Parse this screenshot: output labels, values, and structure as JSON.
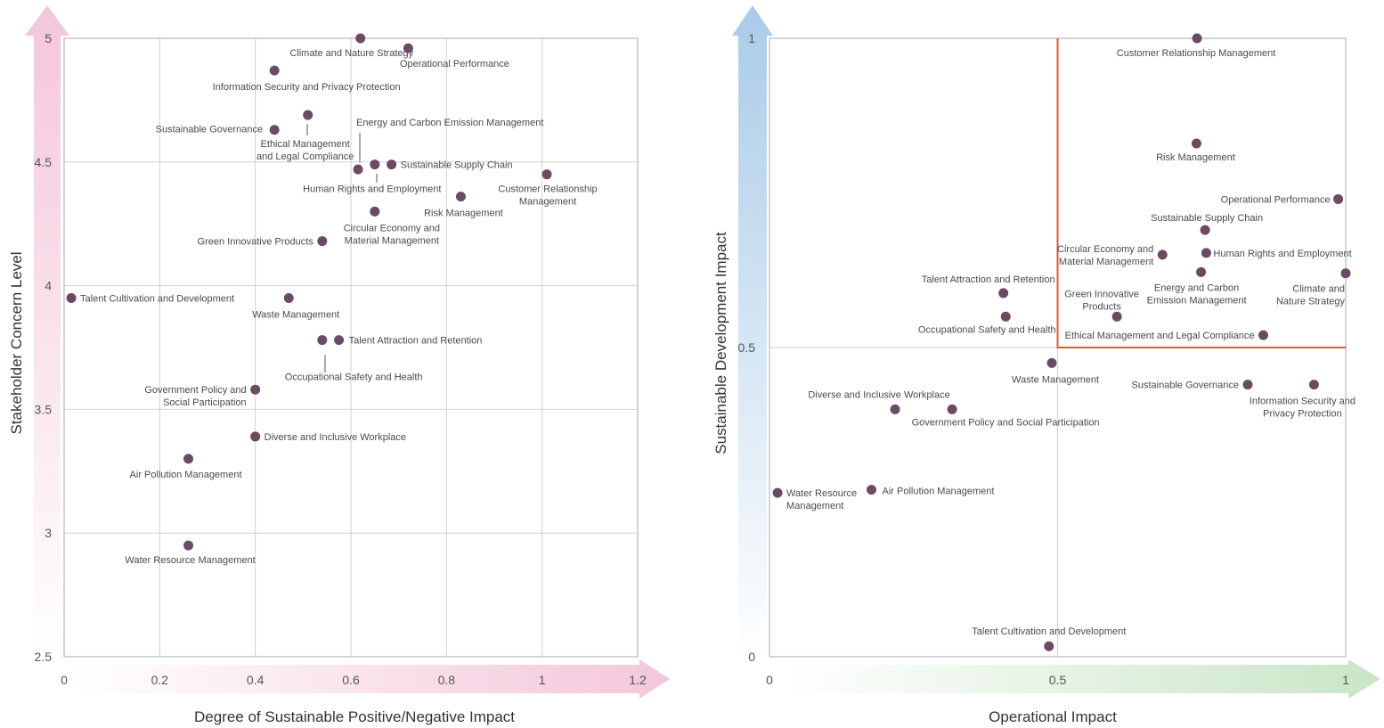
{
  "colors": {
    "point": "#6b4a63",
    "grid": "#d0d0d0",
    "frame": "#b8b8b8",
    "quadrant": "#e2553a",
    "leader": "#555555",
    "pink_arrow": "#f4c6da",
    "blue_arrow": "#a9cbe8",
    "green_arrow": "#c9e5c6"
  },
  "chart_data": [
    {
      "type": "scatter",
      "title": "",
      "xlabel": "Degree of Sustainable Positive/Negative Impact",
      "ylabel": "Stakeholder Concern Level",
      "xlim": [
        0,
        1.2
      ],
      "ylim": [
        2.5,
        5
      ],
      "xticks": [
        "0",
        "0.2",
        "0.4",
        "0.6",
        "0.8",
        "1",
        "1.2"
      ],
      "yticks": [
        "2.5",
        "3",
        "3.5",
        "4",
        "4.5",
        "5"
      ],
      "grid": true,
      "points": [
        {
          "label": "Climate and Nature Strategy",
          "x": 0.62,
          "y": 5.0
        },
        {
          "label": "Operational Performance",
          "x": 0.72,
          "y": 4.96
        },
        {
          "label": "Information Security and Privacy Protection",
          "x": 0.44,
          "y": 4.87
        },
        {
          "label": "Ethical Management\nand Legal Compliance",
          "x": 0.51,
          "y": 4.69
        },
        {
          "label": "Sustainable Governance",
          "x": 0.44,
          "y": 4.63
        },
        {
          "label": "Energy and Carbon Emission Management",
          "x": 0.615,
          "y": 4.47
        },
        {
          "label": "Human Rights and Employment",
          "x": 0.65,
          "y": 4.49
        },
        {
          "label": "Sustainable Supply Chain",
          "x": 0.685,
          "y": 4.49
        },
        {
          "label": "Customer Relationship\nManagement",
          "x": 1.01,
          "y": 4.45
        },
        {
          "label": "Risk Management",
          "x": 0.83,
          "y": 4.36
        },
        {
          "label": "Circular Economy and\nMaterial Management",
          "x": 0.65,
          "y": 4.3
        },
        {
          "label": "Green Innovative Products",
          "x": 0.54,
          "y": 4.18
        },
        {
          "label": "Talent Cultivation and Development",
          "x": 0.015,
          "y": 3.95
        },
        {
          "label": "Waste Management",
          "x": 0.47,
          "y": 3.95
        },
        {
          "label": "Occupational Safety and Health",
          "x": 0.54,
          "y": 3.78
        },
        {
          "label": "Talent Attraction and Retention",
          "x": 0.575,
          "y": 3.78
        },
        {
          "label": "Government Policy and\nSocial Participation",
          "x": 0.4,
          "y": 3.58
        },
        {
          "label": "Diverse and Inclusive Workplace",
          "x": 0.4,
          "y": 3.39
        },
        {
          "label": "Air Pollution Management",
          "x": 0.26,
          "y": 3.3
        },
        {
          "label": "Water Resource Management",
          "x": 0.26,
          "y": 2.95
        }
      ]
    },
    {
      "type": "scatter",
      "title": "",
      "xlabel": "Operational Impact",
      "ylabel": "Sustainable Development Impact",
      "xlim": [
        0,
        1
      ],
      "ylim": [
        0,
        1
      ],
      "xticks": [
        "0",
        "0.5",
        "1"
      ],
      "yticks": [
        "0",
        "0.5",
        "1"
      ],
      "grid": true,
      "highlight_quadrant": {
        "x": [
          0.5,
          1
        ],
        "y": [
          0.5,
          1
        ]
      },
      "points": [
        {
          "label": "Customer Relationship Management",
          "x": 0.742,
          "y": 1.0
        },
        {
          "label": "Risk Management",
          "x": 0.741,
          "y": 0.83
        },
        {
          "label": "Operational Performance",
          "x": 0.987,
          "y": 0.74
        },
        {
          "label": "Sustainable Supply Chain",
          "x": 0.756,
          "y": 0.69
        },
        {
          "label": "Circular Economy and\nMaterial Management",
          "x": 0.682,
          "y": 0.65
        },
        {
          "label": "Human Rights and Employment",
          "x": 0.758,
          "y": 0.653
        },
        {
          "label": "Energy and Carbon\nEmission Management",
          "x": 0.749,
          "y": 0.622
        },
        {
          "label": "Climate and\nNature Strategy",
          "x": 1.0,
          "y": 0.62
        },
        {
          "label": "Talent Attraction and Retention",
          "x": 0.406,
          "y": 0.588
        },
        {
          "label": "Occupational Safety and Health",
          "x": 0.41,
          "y": 0.55
        },
        {
          "label": "Green Innovative\nProducts",
          "x": 0.603,
          "y": 0.55
        },
        {
          "label": "Ethical Management and Legal Compliance",
          "x": 0.857,
          "y": 0.52
        },
        {
          "label": "Waste Management",
          "x": 0.49,
          "y": 0.475
        },
        {
          "label": "Sustainable Governance",
          "x": 0.83,
          "y": 0.44
        },
        {
          "label": "Information Security and\nPrivacy Protection",
          "x": 0.945,
          "y": 0.44
        },
        {
          "label": "Diverse and Inclusive Workplace",
          "x": 0.218,
          "y": 0.4
        },
        {
          "label": "Government Policy and Social Participation",
          "x": 0.317,
          "y": 0.4
        },
        {
          "label": "Water Resource\nManagement",
          "x": 0.014,
          "y": 0.265
        },
        {
          "label": "Air Pollution Management",
          "x": 0.177,
          "y": 0.27
        },
        {
          "label": "Talent Cultivation and Development",
          "x": 0.485,
          "y": 0.017
        }
      ]
    }
  ]
}
